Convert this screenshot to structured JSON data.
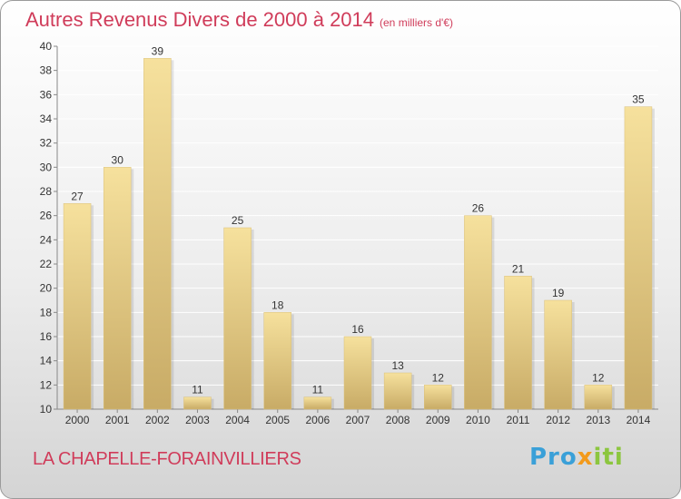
{
  "chart_data": {
    "type": "bar",
    "title": "Autres Revenus Divers de 2000 à 2014",
    "subtitle": "(en milliers d'€)",
    "categories": [
      "2000",
      "2001",
      "2002",
      "2003",
      "2004",
      "2005",
      "2006",
      "2007",
      "2008",
      "2009",
      "2010",
      "2011",
      "2012",
      "2013",
      "2014"
    ],
    "values": [
      27,
      30,
      39,
      11,
      25,
      18,
      11,
      16,
      13,
      12,
      26,
      21,
      19,
      12,
      35
    ],
    "ylim": [
      10,
      40
    ],
    "yticks": [
      10,
      12,
      14,
      16,
      18,
      20,
      22,
      24,
      26,
      28,
      30,
      32,
      34,
      36,
      38,
      40
    ],
    "grid": true,
    "data_labels": true,
    "bar_color": "#ecd391",
    "xlabel": "",
    "ylabel": ""
  },
  "location_label": "LA CHAPELLE-FORAINVILLIERS",
  "logo": {
    "part1": "Pro",
    "part2": "x",
    "part3": "iti"
  },
  "colors": {
    "title": "#d03c5a",
    "grid": "#ffffff"
  }
}
